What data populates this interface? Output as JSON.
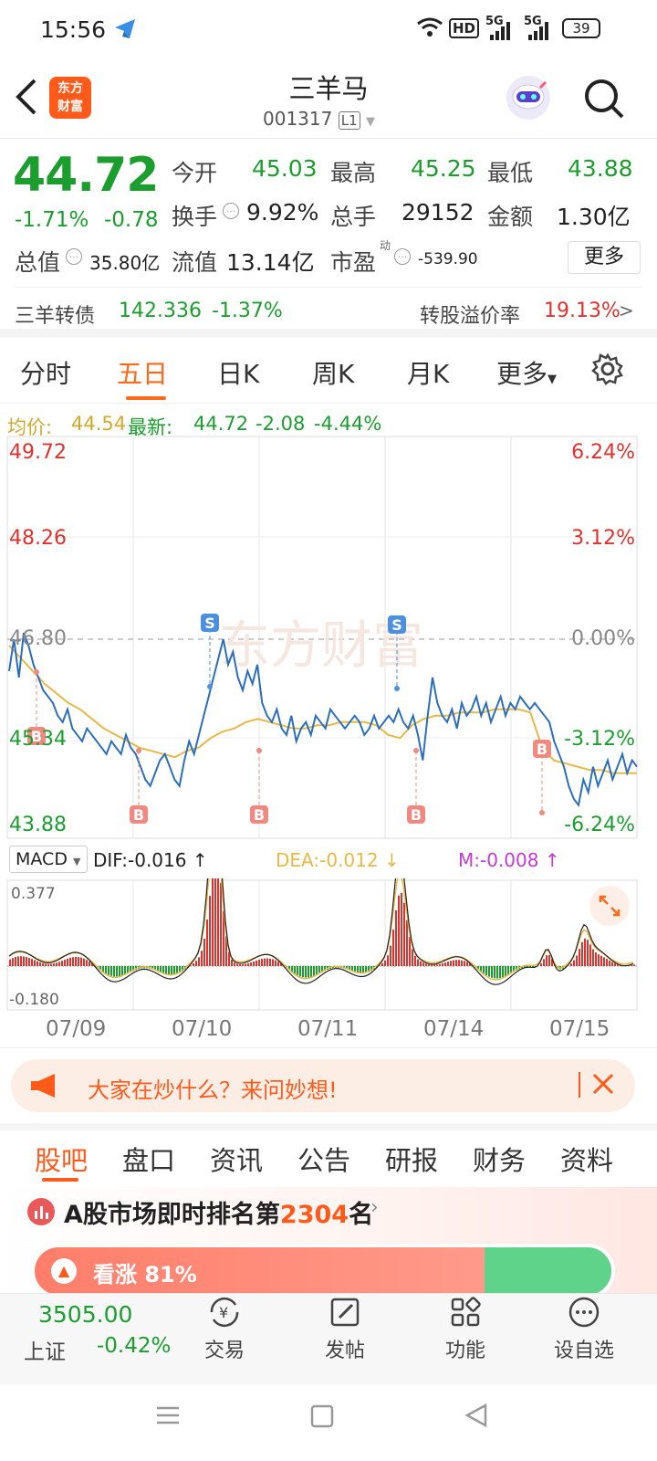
{
  "status": {
    "time": "15:56",
    "battery": "39",
    "hd": "HD",
    "net1": "5G",
    "net2": "5G"
  },
  "header": {
    "brand": "东方财富",
    "stock_name": "三羊马",
    "stock_code": "001317",
    "level": "L1"
  },
  "quote": {
    "price": "44.72",
    "change_pct": "-1.71%",
    "change": "-0.78",
    "open_label": "今开",
    "open": "45.03",
    "high_label": "最高",
    "high": "45.25",
    "low_label": "最低",
    "low": "43.88",
    "turnover_label": "换手",
    "turnover": "9.92%",
    "volume_label": "总手",
    "volume": "29152",
    "amount_label": "金额",
    "amount": "1.30亿",
    "mktcap_label": "总值",
    "mktcap": "35.80亿",
    "float_label": "流值",
    "float": "13.14亿",
    "pe_label": "市盈",
    "pe_sup": "动",
    "pe": "-539.90",
    "more": "更多"
  },
  "bond": {
    "name": "三羊转债",
    "price": "142.336",
    "change": "-1.37%",
    "premium_label": "转股溢价率",
    "premium": "19.13%",
    "arrow": ">"
  },
  "chart_tabs": [
    "分时",
    "五日",
    "日K",
    "周K",
    "月K",
    "更多"
  ],
  "chart_info": {
    "avg_label": "均价:",
    "avg": "44.54",
    "latest_label": "最新:",
    "latest": "44.72",
    "chg": "-2.08",
    "chg_pct": "-4.44%"
  },
  "watermark": "东方财富",
  "chart_data": {
    "type": "line",
    "x": [
      "07/09",
      "07/10",
      "07/11",
      "07/14",
      "07/15"
    ],
    "y_ticks_left": [
      "49.72",
      "48.26",
      "46.80",
      "45.34",
      "43.88"
    ],
    "y_ticks_right": [
      "6.24%",
      "3.12%",
      "0.00%",
      "-3.12%",
      "-6.24%"
    ],
    "ylim": [
      43.88,
      49.72
    ],
    "prev_close": 46.8,
    "series": [],
    "price_path": [
      46.3,
      46.8,
      46.2,
      46.9,
      46.7,
      46.4,
      46.2,
      46.0,
      45.9,
      45.8,
      45.6,
      45.5,
      45.7,
      45.4,
      45.3,
      45.2,
      45.4,
      45.3,
      45.2,
      45.1,
      45.0,
      45.2,
      45.1,
      45.0,
      45.3,
      45.1,
      45.0,
      44.8,
      44.6,
      44.5,
      44.7,
      44.9,
      45.0,
      44.8,
      44.6,
      44.5,
      44.9,
      45.2,
      45.0,
      45.3,
      45.6,
      45.9,
      46.2,
      46.5,
      46.8,
      46.4,
      46.6,
      46.2,
      46.0,
      46.3,
      46.1,
      46.4,
      45.8,
      45.6,
      45.5,
      45.7,
      45.4,
      45.3,
      45.6,
      45.2,
      45.4,
      45.5,
      45.3,
      45.6,
      45.5,
      45.4,
      45.7,
      45.6,
      45.5,
      45.4,
      45.5,
      45.6,
      45.5,
      45.3,
      45.4,
      45.6,
      45.4,
      45.5,
      45.6,
      45.5,
      45.7,
      45.5,
      45.4,
      45.6,
      45.3,
      44.9,
      45.6,
      46.2,
      45.8,
      45.6,
      45.5,
      45.7,
      45.4,
      45.8,
      45.6,
      45.7,
      45.9,
      45.6,
      45.8,
      45.5,
      45.7,
      45.9,
      45.6,
      45.8,
      45.7,
      45.9,
      45.8,
      45.7,
      45.8,
      45.7,
      45.6,
      45.5,
      45.2,
      45.0,
      44.8,
      44.5,
      44.3,
      44.2,
      44.6,
      44.4,
      44.8,
      44.5,
      44.7,
      44.9,
      44.6,
      44.8,
      45.0,
      44.7,
      44.9,
      44.8
    ],
    "avg_path": [
      46.7,
      46.5,
      46.3,
      46.1,
      45.95,
      45.8,
      45.7,
      45.55,
      45.4,
      45.3,
      45.2,
      45.1,
      45.05,
      45.0,
      44.95,
      45.05,
      45.1,
      45.25,
      45.35,
      45.4,
      45.5,
      45.55,
      45.5,
      45.45,
      45.4,
      45.4,
      45.45,
      45.45,
      45.5,
      45.5,
      45.5,
      45.45,
      45.3,
      45.25,
      45.45,
      45.55,
      45.6,
      45.6,
      45.65,
      45.65,
      45.65,
      45.7,
      45.7,
      45.7,
      45.65,
      45.1,
      44.9,
      44.85,
      44.8,
      44.75,
      44.75,
      44.7,
      44.7,
      44.7
    ],
    "buy_markers": [
      "B",
      "B",
      "B",
      "B",
      "B"
    ],
    "sell_markers": [
      "S",
      "S"
    ]
  },
  "macd": {
    "selector": "MACD",
    "dif_label": "DIF:",
    "dif": "-0.016",
    "dif_arrow": "↑",
    "dea_label": "DEA:",
    "dea": "-0.012",
    "dea_arrow": "↓",
    "m_label": "M:",
    "m": "-0.008",
    "m_arrow": "↑",
    "top": "0.377",
    "bottom": "-0.180"
  },
  "promo": {
    "text": "大家在炒什么？来问妙想!"
  },
  "bottom_tabs": [
    "股吧",
    "盘口",
    "资讯",
    "公告",
    "研报",
    "财务",
    "资料"
  ],
  "rank": {
    "prefix": "A股市场即时排名第",
    "num": "2304",
    "suffix": "名"
  },
  "vote": {
    "text": "看涨 81%"
  },
  "index": {
    "value": "3505.00",
    "name": "上证",
    "change": "-0.42%"
  },
  "bottom_nav": [
    "交易",
    "发帖",
    "功能",
    "设自选"
  ],
  "colors": {
    "accent": "#ff6a1a",
    "up": "#e0322d",
    "down": "#1b9e2e",
    "line": "#2a6ebd",
    "avg": "#e8b845"
  }
}
